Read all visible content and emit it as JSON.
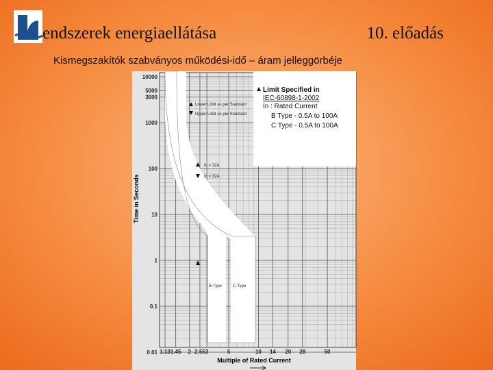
{
  "header": {
    "title": "endszerek energiaellátása",
    "lecture": "10. előadás"
  },
  "subtitle": "Kismegszakítók szabványos működési-idő – áram jelleggörbéje",
  "chart": {
    "y_axis_label": "Time in Seconds",
    "x_axis_label": "Multiple of Rated Current",
    "yticks": [
      10000,
      5000,
      3600,
      1000,
      100,
      10,
      1,
      0.1,
      0.01
    ],
    "xticks": [
      1.13,
      1.45,
      2,
      2.55,
      3,
      5,
      10,
      14,
      20,
      28,
      50
    ],
    "legend": {
      "title": "Limit Specified in",
      "standard": "IEC-60898-1-2002",
      "rated": "In : Rated Current",
      "b_type": "B Type - 0.5A to 100A",
      "c_type": "C Type - 0.5A to 100A"
    },
    "markers": [
      "Lower Limit as per Standard",
      "Upper Limit as per Standard"
    ],
    "current_notes": [
      "In > 32A",
      "In < 32A"
    ],
    "curve_labels": [
      "B-Type",
      "C-Type"
    ]
  }
}
